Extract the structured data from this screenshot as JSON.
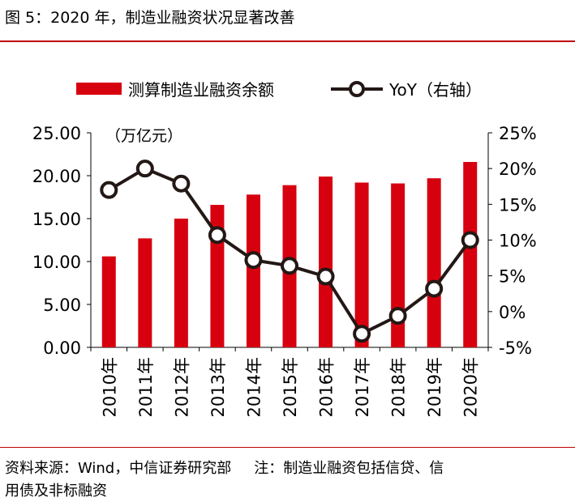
{
  "title": "图 5：2020 年，制造业融资状况显著改善",
  "footer": {
    "source": "资料来源：Wind，中信证券研究部",
    "note": "注：制造业融资包括信贷、信",
    "note_line2": "用债及非标融资"
  },
  "colors": {
    "bar": "#d7000f",
    "line": "#231815",
    "rule": "#c00000"
  },
  "chart_data": {
    "type": "bar",
    "categories": [
      "2010年",
      "2011年",
      "2012年",
      "2013年",
      "2014年",
      "2015年",
      "2016年",
      "2017年",
      "2018年",
      "2019年",
      "2020年"
    ],
    "series": [
      {
        "name": "测算制造业融资余额",
        "type": "bar",
        "axis": "left",
        "values": [
          10.6,
          12.7,
          15.0,
          16.6,
          17.8,
          18.9,
          19.9,
          19.2,
          19.1,
          19.7,
          21.6
        ]
      },
      {
        "name": "YoY（右轴）",
        "type": "line",
        "axis": "right",
        "values": [
          17.0,
          20.0,
          17.9,
          10.7,
          7.2,
          6.4,
          4.9,
          -3.1,
          -0.6,
          3.2,
          10.0
        ]
      }
    ],
    "left_axis": {
      "unit": "（万亿元）",
      "ylim": [
        0,
        25
      ],
      "ticks": [
        "0.00",
        "5.00",
        "10.00",
        "15.00",
        "20.00",
        "25.00"
      ]
    },
    "right_axis": {
      "ylim": [
        -5,
        25
      ],
      "ticks": [
        "-5%",
        "0%",
        "5%",
        "10%",
        "15%",
        "20%",
        "25%"
      ]
    },
    "legend_position": "top"
  }
}
